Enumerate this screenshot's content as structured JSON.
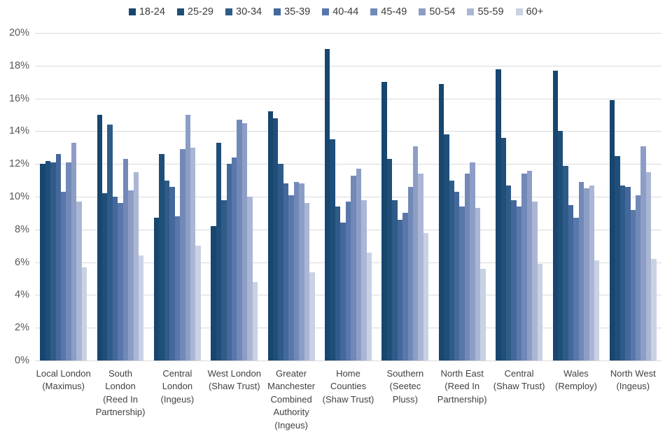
{
  "chart_data": {
    "type": "bar",
    "title": "",
    "xlabel": "",
    "ylabel": "",
    "ylim": [
      0,
      20
    ],
    "y_tick_step": 2,
    "y_tick_labels": [
      "0%",
      "2%",
      "4%",
      "6%",
      "8%",
      "10%",
      "12%",
      "14%",
      "16%",
      "18%",
      "20%"
    ],
    "grid": true,
    "legend_position": "top",
    "categories": [
      "Local London\n(Maximus)",
      "South\nLondon\n(Reed In\nPartnership)",
      "Central\nLondon\n(Ingeus)",
      "West London\n(Shaw Trust)",
      "Greater\nManchester\nCombined\nAuthority\n(Ingeus)",
      "Home\nCounties\n(Shaw Trust)",
      "Southern\n(Seetec\nPluss)",
      "North East\n(Reed In\nPartnership)",
      "Central\n(Shaw Trust)",
      "Wales\n(Remploy)",
      "North West\n(Ingeus)"
    ],
    "series": [
      {
        "name": "18-24",
        "color": "#17466F",
        "values": [
          12.0,
          15.0,
          8.7,
          8.2,
          15.2,
          19.0,
          17.0,
          16.9,
          17.8,
          17.7,
          15.9
        ]
      },
      {
        "name": "25-29",
        "color": "#1F4E79",
        "values": [
          12.2,
          10.2,
          12.6,
          13.3,
          14.8,
          13.5,
          12.3,
          13.8,
          13.6,
          14.0,
          12.5
        ]
      },
      {
        "name": "30-34",
        "color": "#2F5B88",
        "values": [
          12.1,
          14.4,
          11.0,
          9.8,
          12.0,
          9.4,
          9.8,
          11.0,
          10.7,
          11.9,
          10.7
        ]
      },
      {
        "name": "35-39",
        "color": "#44689B",
        "values": [
          12.6,
          10.0,
          10.6,
          12.0,
          10.8,
          8.4,
          8.6,
          10.3,
          9.8,
          9.5,
          10.6
        ]
      },
      {
        "name": "40-44",
        "color": "#5877AB",
        "values": [
          10.3,
          9.6,
          8.8,
          12.4,
          10.1,
          9.7,
          9.0,
          9.4,
          9.4,
          8.7,
          9.2
        ]
      },
      {
        "name": "45-49",
        "color": "#7289B8",
        "values": [
          12.1,
          12.3,
          12.9,
          14.7,
          10.9,
          11.3,
          10.6,
          11.4,
          11.4,
          10.9,
          10.1
        ]
      },
      {
        "name": "50-54",
        "color": "#8D9EC6",
        "values": [
          13.3,
          10.4,
          15.0,
          14.5,
          10.8,
          11.7,
          13.1,
          12.1,
          11.6,
          10.5,
          13.1
        ]
      },
      {
        "name": "55-59",
        "color": "#AAB6D4",
        "values": [
          9.7,
          11.5,
          13.0,
          10.0,
          9.6,
          9.8,
          11.4,
          9.3,
          9.7,
          10.7,
          11.5
        ]
      },
      {
        "name": "60+",
        "color": "#C9D1E4",
        "values": [
          5.7,
          6.4,
          7.0,
          4.8,
          5.4,
          6.6,
          7.8,
          5.6,
          5.9,
          6.1,
          6.2
        ]
      }
    ],
    "colors": {
      "gridline": "#d9d9d9",
      "axis_text": "#595959",
      "category_text": "#414141"
    }
  }
}
